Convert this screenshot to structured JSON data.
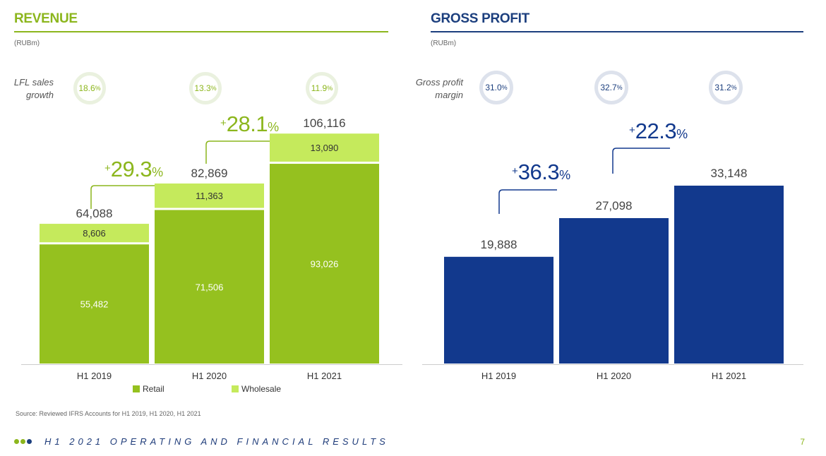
{
  "revenue": {
    "title": "REVENUE",
    "unit": "(RUBm)",
    "lfl_label_line1": "LFL sales",
    "lfl_label_line2": "growth",
    "lfl": [
      {
        "value": "18.6",
        "pct": "%"
      },
      {
        "value": "13.3",
        "pct": "%"
      },
      {
        "value": "11.9",
        "pct": "%"
      }
    ],
    "growth": [
      {
        "plus": "+",
        "value": "29.3",
        "pct": "%"
      },
      {
        "plus": "+",
        "value": "28.1",
        "pct": "%"
      }
    ],
    "legend": {
      "retail": "Retail",
      "wholesale": "Wholesale"
    }
  },
  "gross_profit": {
    "title": "GROSS PROFIT",
    "unit": "(RUBm)",
    "margin_label_line1": "Gross profit",
    "margin_label_line2": "margin",
    "margins": [
      {
        "value": "31.0",
        "pct": "%"
      },
      {
        "value": "32.7",
        "pct": "%"
      },
      {
        "value": "31.2",
        "pct": "%"
      }
    ],
    "growth": [
      {
        "plus": "+",
        "value": "36.3",
        "pct": "%"
      },
      {
        "plus": "+",
        "value": "22.3",
        "pct": "%"
      }
    ]
  },
  "chart_data": [
    {
      "type": "bar",
      "stacked": true,
      "title": "REVENUE",
      "ylabel": "(RUBm)",
      "categories": [
        "H1 2019",
        "H1 2020",
        "H1 2021"
      ],
      "series": [
        {
          "name": "Retail",
          "values": [
            55482,
            71506,
            93026
          ],
          "labels": [
            "55,482",
            "71,506",
            "93,026"
          ]
        },
        {
          "name": "Wholesale",
          "values": [
            8606,
            11363,
            13090
          ],
          "labels": [
            "8,606",
            "11,363",
            "13,090"
          ]
        }
      ],
      "totals": [
        64088,
        82869,
        106116
      ],
      "total_labels": [
        "64,088",
        "82,869",
        "106,116"
      ],
      "ylim": [
        0,
        120000
      ],
      "legend": "bottom"
    },
    {
      "type": "bar",
      "title": "GROSS PROFIT",
      "ylabel": "(RUBm)",
      "categories": [
        "H1 2019",
        "H1 2020",
        "H1 2021"
      ],
      "values": [
        19888,
        27098,
        33148
      ],
      "labels": [
        "19,888",
        "27,098",
        "33,148"
      ],
      "ylim": [
        0,
        40000
      ]
    }
  ],
  "colors": {
    "green": "#8cb61d",
    "retail": "#95c11f",
    "wholesale": "#c5ea5c",
    "blue": "#12398d",
    "navy": "#1c3f7e"
  },
  "footer": {
    "source": "Source: Reviewed IFRS Accounts for H1 2019, H1 2020, H1 2021",
    "title": "H1 2021 OPERATING AND FINANCIAL RESULTS",
    "page": "7"
  }
}
